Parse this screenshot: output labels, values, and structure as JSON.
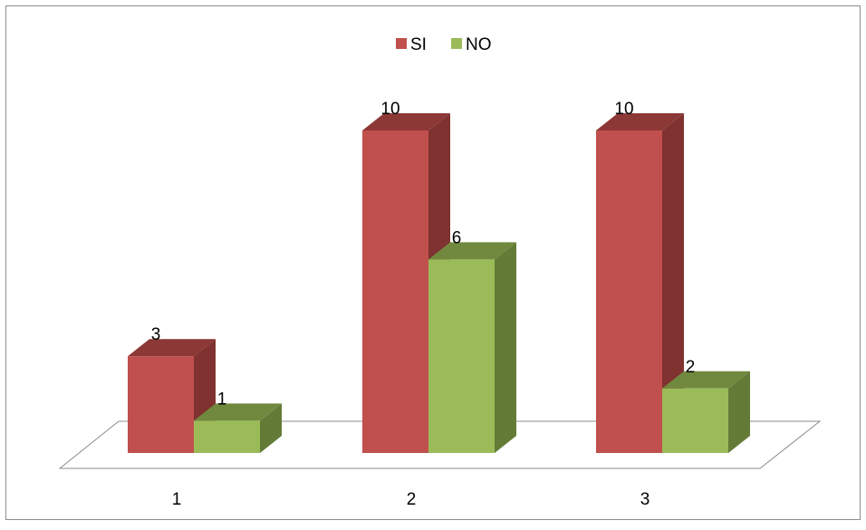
{
  "chart_data": {
    "type": "bar",
    "categories": [
      "1",
      "2",
      "3"
    ],
    "series": [
      {
        "name": "SI",
        "values": [
          3,
          10,
          10
        ],
        "color": "#c0504d",
        "side_color": "#7f3230",
        "top_color": "#8c3836"
      },
      {
        "name": "NO",
        "values": [
          1,
          6,
          2
        ],
        "color": "#9bbb59",
        "side_color": "#637b36",
        "top_color": "#71893f"
      }
    ],
    "data_labels": true,
    "legend_position": "top-center",
    "grid": false,
    "three_d": true,
    "ylim": [
      0,
      10
    ]
  }
}
